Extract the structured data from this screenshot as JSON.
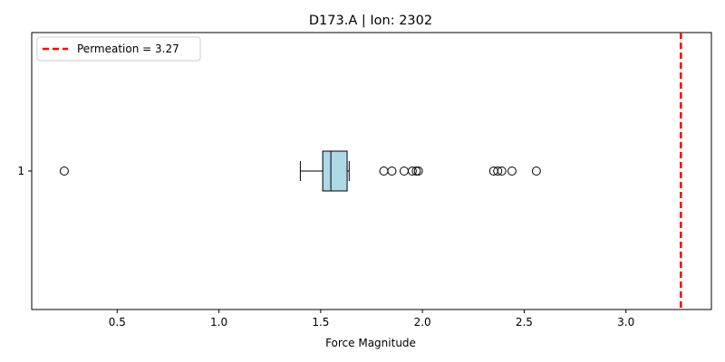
{
  "chart_data": {
    "type": "boxplot",
    "orientation": "horizontal",
    "title": "D173.A | Ion: 2302",
    "xlabel": "Force Magnitude",
    "ylabel": "",
    "xlim": [
      0.08,
      3.42
    ],
    "xticks": [
      0.5,
      1.0,
      1.5,
      2.0,
      2.5,
      3.0
    ],
    "xtick_labels": [
      "0.5",
      "1.0",
      "1.5",
      "2.0",
      "2.5",
      "3.0"
    ],
    "yticks": [
      "1"
    ],
    "grid": false,
    "box": {
      "position": "1",
      "whisker_low": 1.4,
      "q1": 1.51,
      "median": 1.55,
      "q3": 1.63,
      "whisker_high": 1.64,
      "fill_color": "#add8e6",
      "edge_color": "#000000",
      "median_color": "#000000"
    },
    "outliers": [
      0.24,
      1.81,
      1.85,
      1.91,
      1.95,
      1.97,
      1.98,
      2.35,
      2.37,
      2.39,
      2.44,
      2.56
    ],
    "reference_line": {
      "value": 3.27,
      "label": "Permeation = 3.27",
      "color": "#ff0000",
      "style": "dashed"
    },
    "legend": {
      "placement": "upper-left",
      "entries": [
        {
          "label": "Permeation = 3.27",
          "color": "#ff0000",
          "style": "dashed"
        }
      ]
    }
  }
}
